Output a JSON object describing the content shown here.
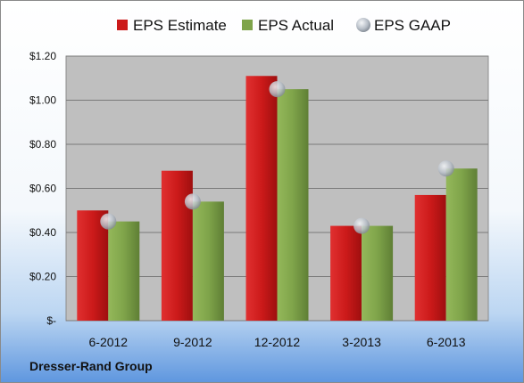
{
  "chart_data": {
    "type": "bar",
    "categories": [
      "6-2012",
      "9-2012",
      "12-2012",
      "3-2013",
      "6-2013"
    ],
    "series": [
      {
        "name": "EPS Estimate",
        "type": "bar",
        "color": "#cc1a1a",
        "values": [
          0.5,
          0.68,
          1.11,
          0.43,
          0.57
        ]
      },
      {
        "name": "EPS Actual",
        "type": "bar",
        "color": "#7fa44a",
        "values": [
          0.45,
          0.54,
          1.05,
          0.43,
          0.69
        ]
      },
      {
        "name": "EPS GAAP",
        "type": "marker",
        "color": "#b8bfc8",
        "values": [
          0.45,
          0.54,
          1.05,
          0.43,
          0.69
        ]
      }
    ],
    "y_ticks": [
      0,
      0.2,
      0.4,
      0.6,
      0.8,
      1.0,
      1.2
    ],
    "y_tick_labels": [
      "$-",
      "$0.20",
      "$0.40",
      "$0.60",
      "$0.80",
      "$1.00",
      "$1.20"
    ],
    "ylim": [
      0,
      1.2
    ],
    "grid": true,
    "legend_position": "top",
    "plot_background": "#bfbfbf"
  },
  "company_name": "Dresser-Rand Group"
}
